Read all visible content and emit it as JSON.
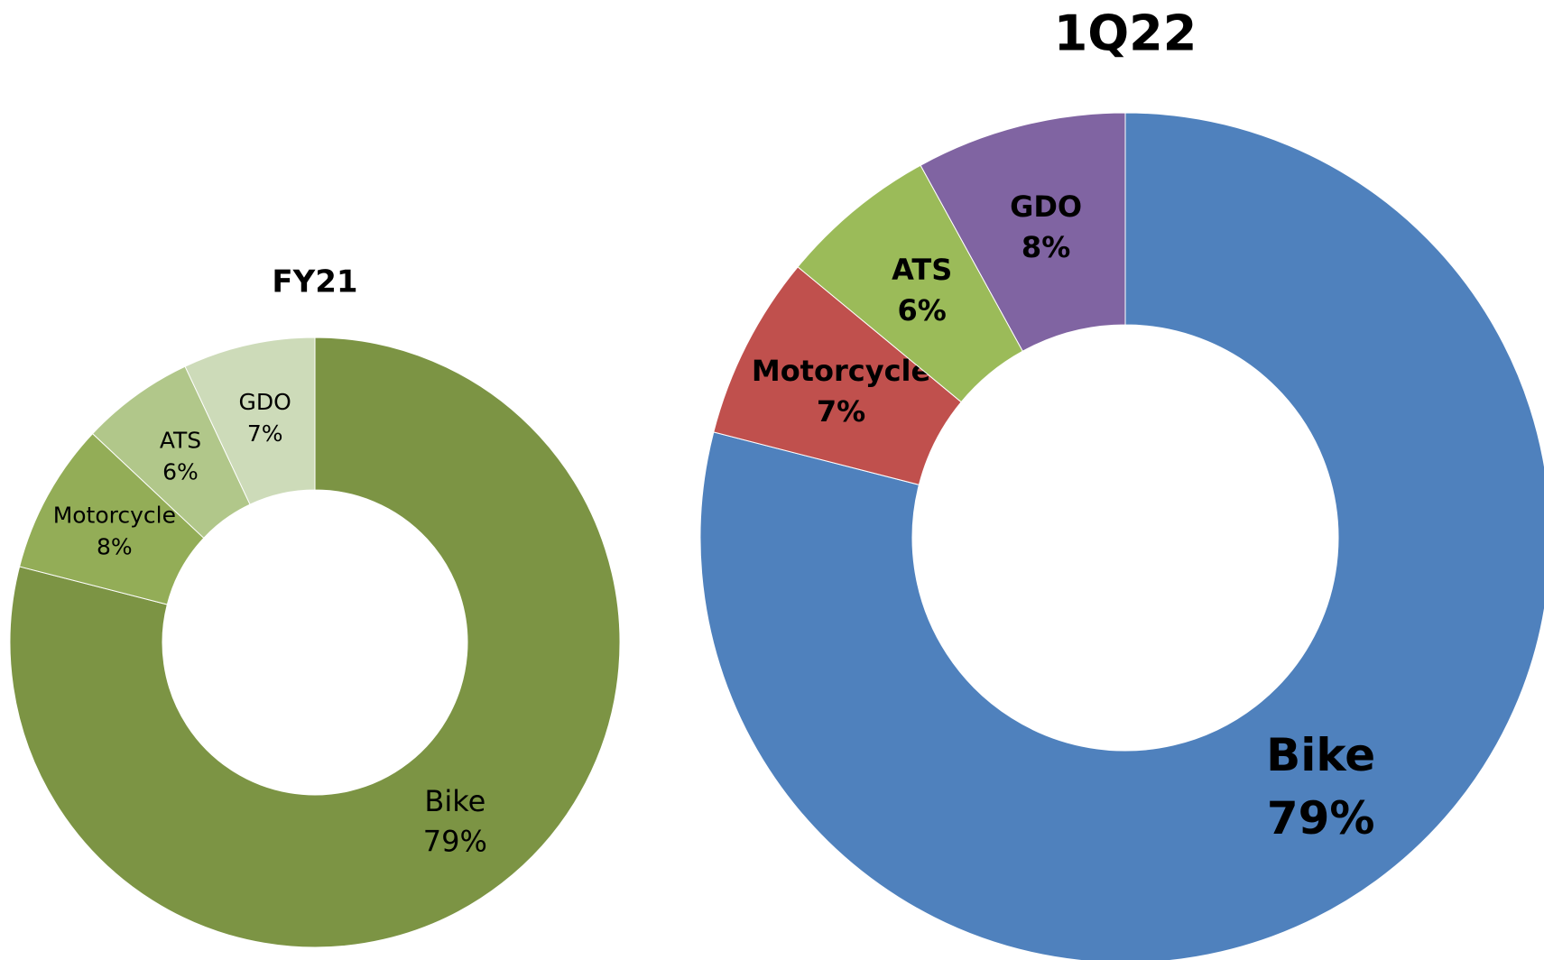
{
  "chart_data": [
    {
      "type": "pie",
      "title": "FY21",
      "categories": [
        "Bike",
        "Motorcycle",
        "ATS",
        "GDO"
      ],
      "values": [
        79,
        8,
        6,
        7
      ],
      "value_labels": [
        "79%",
        "8%",
        "6%",
        "7%"
      ],
      "colors": [
        "#7c9444",
        "#93ad57",
        "#b1c78a",
        "#cddbb9"
      ]
    },
    {
      "type": "pie",
      "title": "1Q22",
      "categories": [
        "Bike",
        "Motorcycle",
        "ATS",
        "GDO"
      ],
      "values": [
        79,
        7,
        6,
        8
      ],
      "value_labels": [
        "79%",
        "7%",
        "6%",
        "8%"
      ],
      "colors": [
        "#4f81bd",
        "#c0504d",
        "#9bbb59",
        "#8064a2"
      ]
    }
  ]
}
